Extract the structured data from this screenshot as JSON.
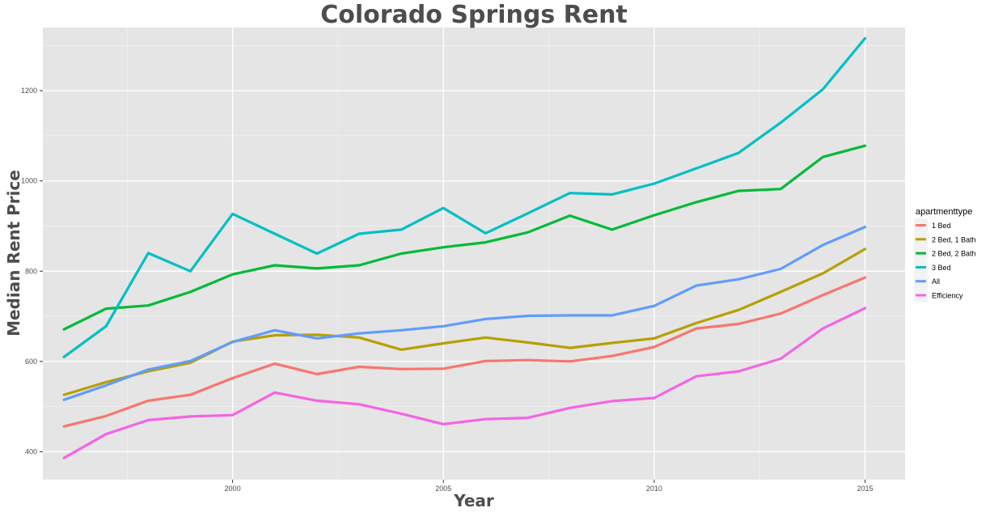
{
  "chart_data": {
    "type": "line",
    "title": "Colorado Springs Rent",
    "xlabel": "Year",
    "ylabel": "Median Rent Price",
    "xlim": [
      1995.5,
      2015.95
    ],
    "ylim": [
      338,
      1340
    ],
    "x_ticks": [
      2000,
      2005,
      2010,
      2015
    ],
    "y_ticks": [
      400,
      600,
      800,
      1000,
      1200
    ],
    "grid": true,
    "legend": {
      "title": "apartmenttype",
      "position": "right"
    },
    "x": [
      1996,
      1997,
      1998,
      1999,
      2000,
      2001,
      2002,
      2003,
      2004,
      2005,
      2006,
      2007,
      2008,
      2009,
      2010,
      2011,
      2012,
      2013,
      2014,
      2015
    ],
    "series": [
      {
        "name": "1 Bed",
        "color": "#F8766D",
        "values": [
          456,
          479,
          513,
          526,
          563,
          595,
          572,
          588,
          583,
          584,
          601,
          603,
          600,
          612,
          632,
          673,
          683,
          706,
          747,
          786
        ]
      },
      {
        "name": "2 Bed, 1 Bath",
        "color": "#B79F00",
        "values": [
          526,
          554,
          578,
          597,
          644,
          658,
          659,
          653,
          626,
          640,
          653,
          642,
          630,
          641,
          651,
          685,
          714,
          754,
          795,
          849
        ]
      },
      {
        "name": "2 Bed, 2 Bath",
        "color": "#00BA38",
        "values": [
          671,
          717,
          724,
          754,
          793,
          813,
          806,
          813,
          839,
          853,
          864,
          886,
          923,
          892,
          924,
          953,
          978,
          982,
          1053,
          1078
        ]
      },
      {
        "name": "3 Bed",
        "color": "#00BFC4",
        "values": [
          610,
          678,
          840,
          800,
          927,
          883,
          839,
          883,
          892,
          940,
          884,
          928,
          973,
          970,
          994,
          1028,
          1062,
          1129,
          1203,
          1316
        ]
      },
      {
        "name": "All",
        "color": "#619CFF",
        "values": [
          515,
          547,
          582,
          601,
          643,
          669,
          651,
          662,
          669,
          678,
          694,
          701,
          702,
          702,
          723,
          768,
          782,
          805,
          858,
          898
        ]
      },
      {
        "name": "Efficiency",
        "color": "#F564E3",
        "values": [
          386,
          439,
          470,
          478,
          481,
          531,
          513,
          505,
          484,
          461,
          472,
          475,
          497,
          512,
          519,
          567,
          578,
          606,
          673,
          718
        ]
      }
    ]
  }
}
